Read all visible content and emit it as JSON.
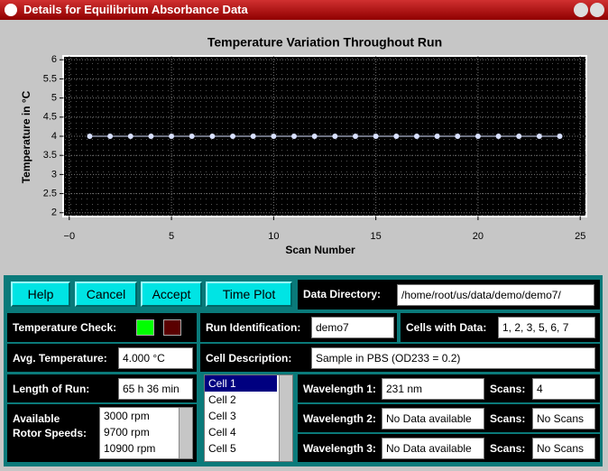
{
  "window": {
    "title": "Details for Equilibrium Absorbance Data"
  },
  "chart_data": {
    "type": "line",
    "title": "Temperature Variation Throughout Run",
    "x_label": "Scan Number",
    "y_label": "Temperature in °C",
    "x": [
      1,
      2,
      3,
      4,
      5,
      6,
      7,
      8,
      9,
      10,
      11,
      12,
      13,
      14,
      15,
      16,
      17,
      18,
      19,
      20,
      21,
      22,
      23,
      24
    ],
    "series": [
      {
        "color": "#d8e0ff",
        "values": [
          4,
          4,
          4,
          4,
          4,
          4,
          4,
          4,
          4,
          4,
          4,
          4,
          4,
          4,
          4,
          4,
          4,
          4,
          4,
          4,
          4,
          4,
          4,
          4
        ]
      }
    ],
    "xlim": [
      -0.3,
      25.3
    ],
    "xticks": [
      {
        "value": 0,
        "label": "−0"
      },
      5,
      10,
      15,
      20,
      25
    ],
    "ylim": [
      1.9,
      6.1
    ],
    "yticks": [
      2,
      2.5,
      3,
      3.5,
      4,
      4.5,
      5,
      5.5,
      6
    ],
    "grid": true
  },
  "buttons": [
    "Help",
    "Cancel",
    "Accept",
    "Time Plot"
  ],
  "form": {
    "data_directory": {
      "label": "Data Directory:",
      "value": "/home/root/us/data/demo/demo7/"
    },
    "temperature_check": {
      "label": "Temperature Check:",
      "indicator_colors": [
        "#00ff00",
        "#5a0000"
      ]
    },
    "run_identification": {
      "label": "Run Identification:",
      "value": "demo7"
    },
    "cells_with_data": {
      "label": "Cells with Data:",
      "value": "1, 2, 3, 5, 6, 7"
    },
    "avg_temperature": {
      "label": "Avg. Temperature:",
      "value": "4.000 °C"
    },
    "cell_description": {
      "label": "Cell Description:",
      "value": "Sample in PBS (OD233 = 0.2)"
    },
    "length_of_run": {
      "label": "Length of Run:",
      "value": "65 h 36 min"
    },
    "rotor_speeds": {
      "label": "Available Rotor Speeds:",
      "items": [
        "3000 rpm",
        "9700 rpm",
        "10900 rpm"
      ]
    },
    "cells": [
      "Cell 1",
      "Cell 2",
      "Cell 3",
      "Cell 4",
      "Cell 5"
    ],
    "wavelengths": [
      {
        "label": "Wavelength 1:",
        "value": "231 nm",
        "scans_label": "Scans:",
        "scans": "4"
      },
      {
        "label": "Wavelength 2:",
        "value": "No Data available",
        "scans_label": "Scans:",
        "scans": "No Scans"
      },
      {
        "label": "Wavelength 3:",
        "value": "No Data available",
        "scans_label": "Scans:",
        "scans": "No Scans"
      }
    ]
  }
}
